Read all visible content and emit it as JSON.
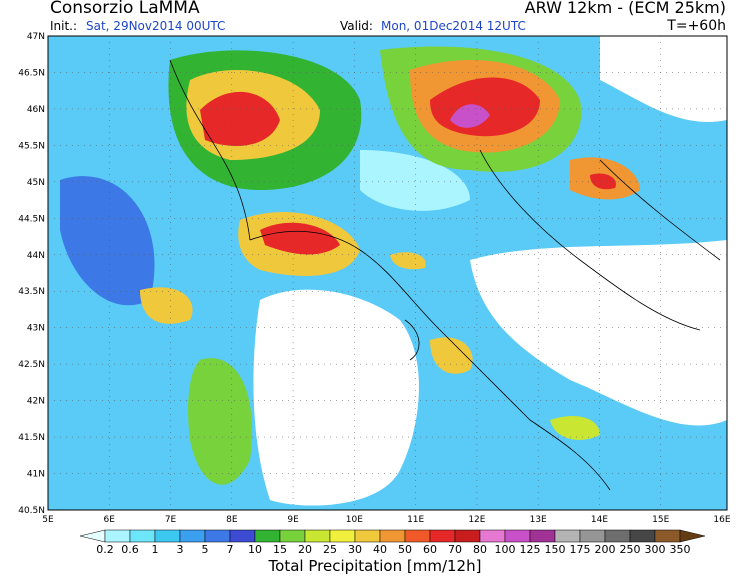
{
  "header": {
    "title": "Consorzio LaMMA",
    "init_label": "Init.:",
    "init": "Sat, 29Nov2014 00UTC",
    "valid_label": "Valid:",
    "valid": "Mon, 01Dec2014 12UTC",
    "model": "ARW 12km - (ECM 25km)",
    "lead": "T=+60h"
  },
  "map": {
    "lat_labels": [
      "47N",
      "46.5N",
      "46N",
      "45.5N",
      "45N",
      "44.5N",
      "44N",
      "43.5N",
      "43N",
      "42.5N",
      "42N",
      "41.5N",
      "41N",
      "40.5N"
    ],
    "lon_labels": [
      "5E",
      "6E",
      "7E",
      "8E",
      "9E",
      "10E",
      "11E",
      "12E",
      "13E",
      "14E",
      "15E",
      "16E"
    ]
  },
  "colorbar": {
    "title": "Total Precipitation [mm/12h]",
    "levels": [
      "0.2",
      "0.6",
      "1",
      "3",
      "5",
      "7",
      "10",
      "15",
      "20",
      "25",
      "30",
      "40",
      "50",
      "60",
      "70",
      "80",
      "100",
      "125",
      "150",
      "175",
      "200",
      "250",
      "300",
      "350"
    ],
    "colors": [
      "#e6ffff",
      "#aaf5ff",
      "#6ee6fa",
      "#3cc8f0",
      "#3ca0f0",
      "#3c78e6",
      "#3c4bd2",
      "#32b432",
      "#78d23c",
      "#c8e632",
      "#f0f03c",
      "#f0c83c",
      "#f09632",
      "#f05a28",
      "#e62828",
      "#c81e1e",
      "#e678d2",
      "#c850c8",
      "#a03296",
      "#b4b4b4",
      "#969696",
      "#6e6e6e",
      "#464646",
      "#8c5a28",
      "#643c14"
    ]
  }
}
